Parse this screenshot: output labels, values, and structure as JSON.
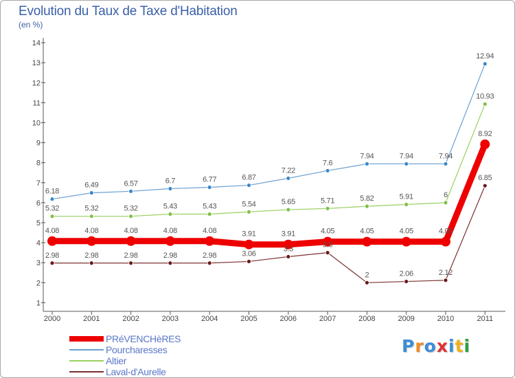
{
  "title": "Evolution du Taux de Taxe d'Habitation",
  "unit_label": "(en %)",
  "logo": {
    "letters": [
      "P",
      "r",
      "o",
      "x",
      "i",
      "t",
      "i"
    ],
    "colors": [
      "#3c8ed8",
      "#f08a24",
      "#3c8ed8",
      "#e03030",
      "#3c8ed8",
      "#f0b020",
      "#2aa040"
    ]
  },
  "chart_data": {
    "type": "line",
    "x": [
      "2000",
      "2001",
      "2002",
      "2003",
      "2004",
      "2005",
      "2006",
      "2007",
      "2008",
      "2009",
      "2010",
      "2011"
    ],
    "y_ticks": [
      "1",
      "2",
      "3",
      "4",
      "5",
      "6",
      "7",
      "8",
      "9",
      "10",
      "11",
      "12",
      "13",
      "14"
    ],
    "ylim": [
      0.5,
      14
    ],
    "grid": false,
    "legend_position": "bottom-left",
    "series": [
      {
        "name": "PRéVENCHèRES",
        "color": "#ee0000",
        "values": [
          4.08,
          4.08,
          4.08,
          4.08,
          4.08,
          3.91,
          3.91,
          4.05,
          4.05,
          4.05,
          4.05,
          8.92
        ],
        "labels": [
          "4.08",
          "4.08",
          "4.08",
          "4.08",
          "4.08",
          "3.91",
          "3.91",
          "4.05",
          "4.05",
          "4.05",
          "4.05",
          "8.92"
        ]
      },
      {
        "name": "Pourcharesses",
        "color": "#6a9fd0",
        "values": [
          6.18,
          6.49,
          6.57,
          6.7,
          6.77,
          6.87,
          7.22,
          7.6,
          7.94,
          7.94,
          7.94,
          12.94
        ],
        "labels": [
          "6.18",
          "6.49",
          "6.57",
          "6.7",
          "6.77",
          "6.87",
          "7.22",
          "7.6",
          "7.94",
          "7.94",
          "7.94",
          "12.94"
        ]
      },
      {
        "name": "Altier",
        "color": "#98d060",
        "values": [
          5.32,
          5.32,
          5.32,
          5.43,
          5.43,
          5.54,
          5.65,
          5.71,
          5.82,
          5.91,
          6,
          10.93
        ],
        "labels": [
          "5.32",
          "5.32",
          "5.32",
          "5.43",
          "5.43",
          "5.54",
          "5.65",
          "5.71",
          "5.82",
          "5.91",
          "6",
          "10.93"
        ]
      },
      {
        "name": "Laval-d'Aurelle",
        "color": "#7a3030",
        "values": [
          2.98,
          2.98,
          2.98,
          2.98,
          2.98,
          3.06,
          3.3,
          3.5,
          2,
          2.06,
          2.12,
          6.85
        ],
        "labels": [
          "2.98",
          "2.98",
          "2.98",
          "2.98",
          "2.98",
          "3.06",
          "3.3",
          "3.5",
          "2",
          "2.06",
          "2.12",
          "6.85"
        ]
      }
    ]
  }
}
